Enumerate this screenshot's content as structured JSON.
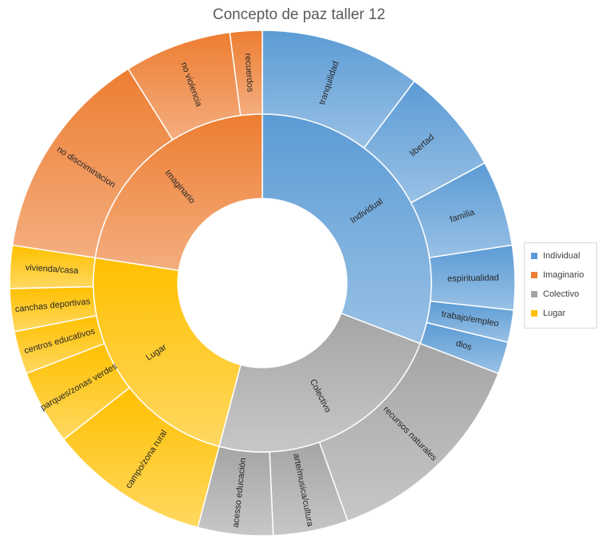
{
  "chart_data": {
    "type": "sunburst",
    "title": "Concepto de paz taller 12",
    "legend_position": "right",
    "categories": [
      {
        "name": "Individual",
        "color": "#5b9bd5",
        "children": [
          {
            "name": "tranquilidad",
            "value": 15
          },
          {
            "name": "libertad",
            "value": 10
          },
          {
            "name": "familia",
            "value": 8
          },
          {
            "name": "espiritualidad",
            "value": 6
          },
          {
            "name": "trabajo/empleo",
            "value": 3
          },
          {
            "name": "dios",
            "value": 3
          }
        ]
      },
      {
        "name": "Colectivo",
        "color": "#a5a5a5",
        "children": [
          {
            "name": "recursos naturales",
            "value": 20
          },
          {
            "name": "arte/musica/cultura",
            "value": 7
          },
          {
            "name": "acesso educación",
            "value": 7
          }
        ]
      },
      {
        "name": "Lugar",
        "color": "#ffc000",
        "children": [
          {
            "name": "campo/zona rural",
            "value": 15
          },
          {
            "name": "parques/zonas verdes",
            "value": 7
          },
          {
            "name": "centros educativos",
            "value": 4
          },
          {
            "name": "canchas deportivas",
            "value": 4
          },
          {
            "name": "vivienda/casa",
            "value": 4
          }
        ]
      },
      {
        "name": "Imaginario",
        "color": "#ed7d31",
        "children": [
          {
            "name": "no discriminacion",
            "value": 20
          },
          {
            "name": "no violencia",
            "value": 10
          },
          {
            "name": "recuerdos",
            "value": 3
          }
        ]
      }
    ]
  },
  "legend": {
    "items": [
      {
        "label": "Individual",
        "color": "#5b9bd5"
      },
      {
        "label": "Imaginario",
        "color": "#ed7d31"
      },
      {
        "label": "Colectivo",
        "color": "#a5a5a5"
      },
      {
        "label": "Lugar",
        "color": "#ffc000"
      }
    ]
  }
}
